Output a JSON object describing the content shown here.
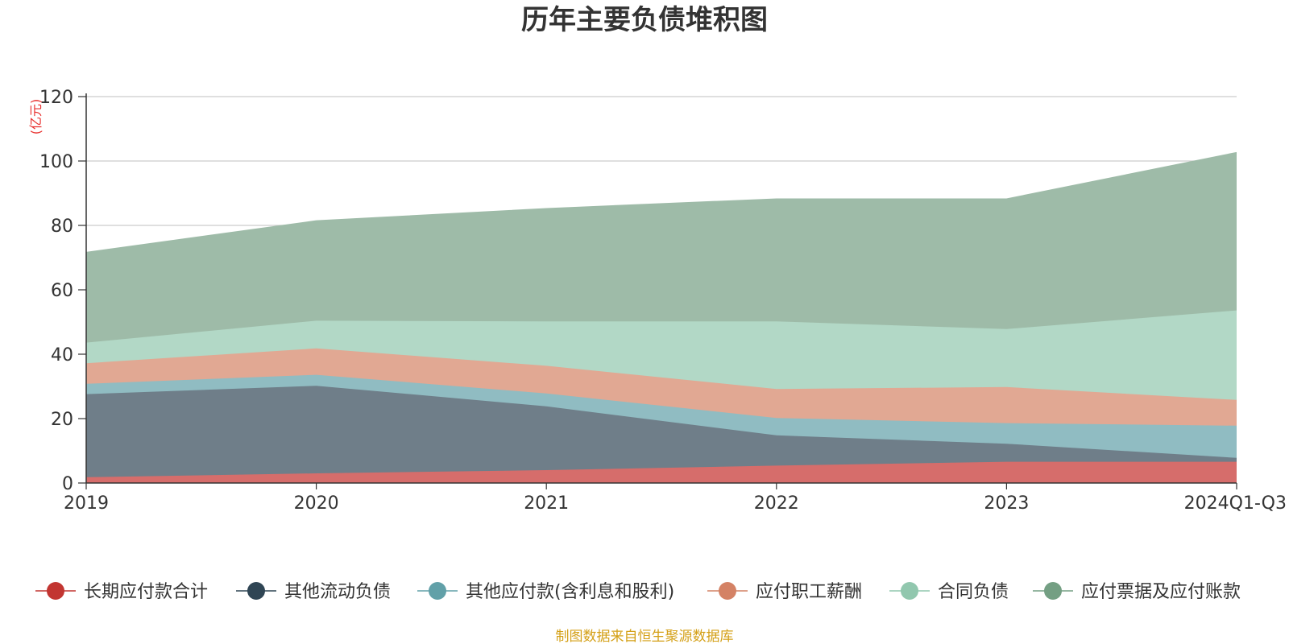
{
  "chart_data": {
    "type": "area",
    "stacked": true,
    "title": "历年主要负债堆积图",
    "ylabel": "(亿元)",
    "xlabel": "",
    "categories": [
      "2019",
      "2020",
      "2021",
      "2022",
      "2023",
      "2024Q1-Q3"
    ],
    "ylim": [
      0,
      120
    ],
    "yticks": [
      0,
      20,
      40,
      60,
      80,
      100,
      120
    ],
    "grid": true,
    "legend_position": "bottom",
    "series": [
      {
        "name": "长期应付款合计",
        "color": "#c23531",
        "fill": "#d66d6b",
        "values": [
          1.8,
          3.0,
          4.0,
          5.4,
          6.6,
          6.6
        ]
      },
      {
        "name": "其他流动负债",
        "color": "#2f4554",
        "fill": "#6f7e89",
        "values": [
          25.8,
          27.2,
          19.8,
          9.4,
          5.6,
          1.2
        ]
      },
      {
        "name": "其他应付款(含利息和股利)",
        "color": "#61a0a8",
        "fill": "#90bcc2",
        "values": [
          3.2,
          3.4,
          4.0,
          5.4,
          6.4,
          10.0
        ]
      },
      {
        "name": "应付职工薪酬",
        "color": "#d48265",
        "fill": "#e1a893",
        "values": [
          6.4,
          8.2,
          8.6,
          9.0,
          11.2,
          8.0
        ]
      },
      {
        "name": "合同负债",
        "color": "#91c7ae",
        "fill": "#b2d8c6",
        "values": [
          6.4,
          8.6,
          13.8,
          21.0,
          18.0,
          27.8
        ]
      },
      {
        "name": "应付票据及应付账款",
        "color": "#749f83",
        "fill": "#9ebba8",
        "values": [
          28.0,
          31.0,
          35.0,
          38.0,
          40.4,
          49.0
        ]
      }
    ]
  },
  "footer": {
    "source": "制图数据来自恒生聚源数据库"
  }
}
